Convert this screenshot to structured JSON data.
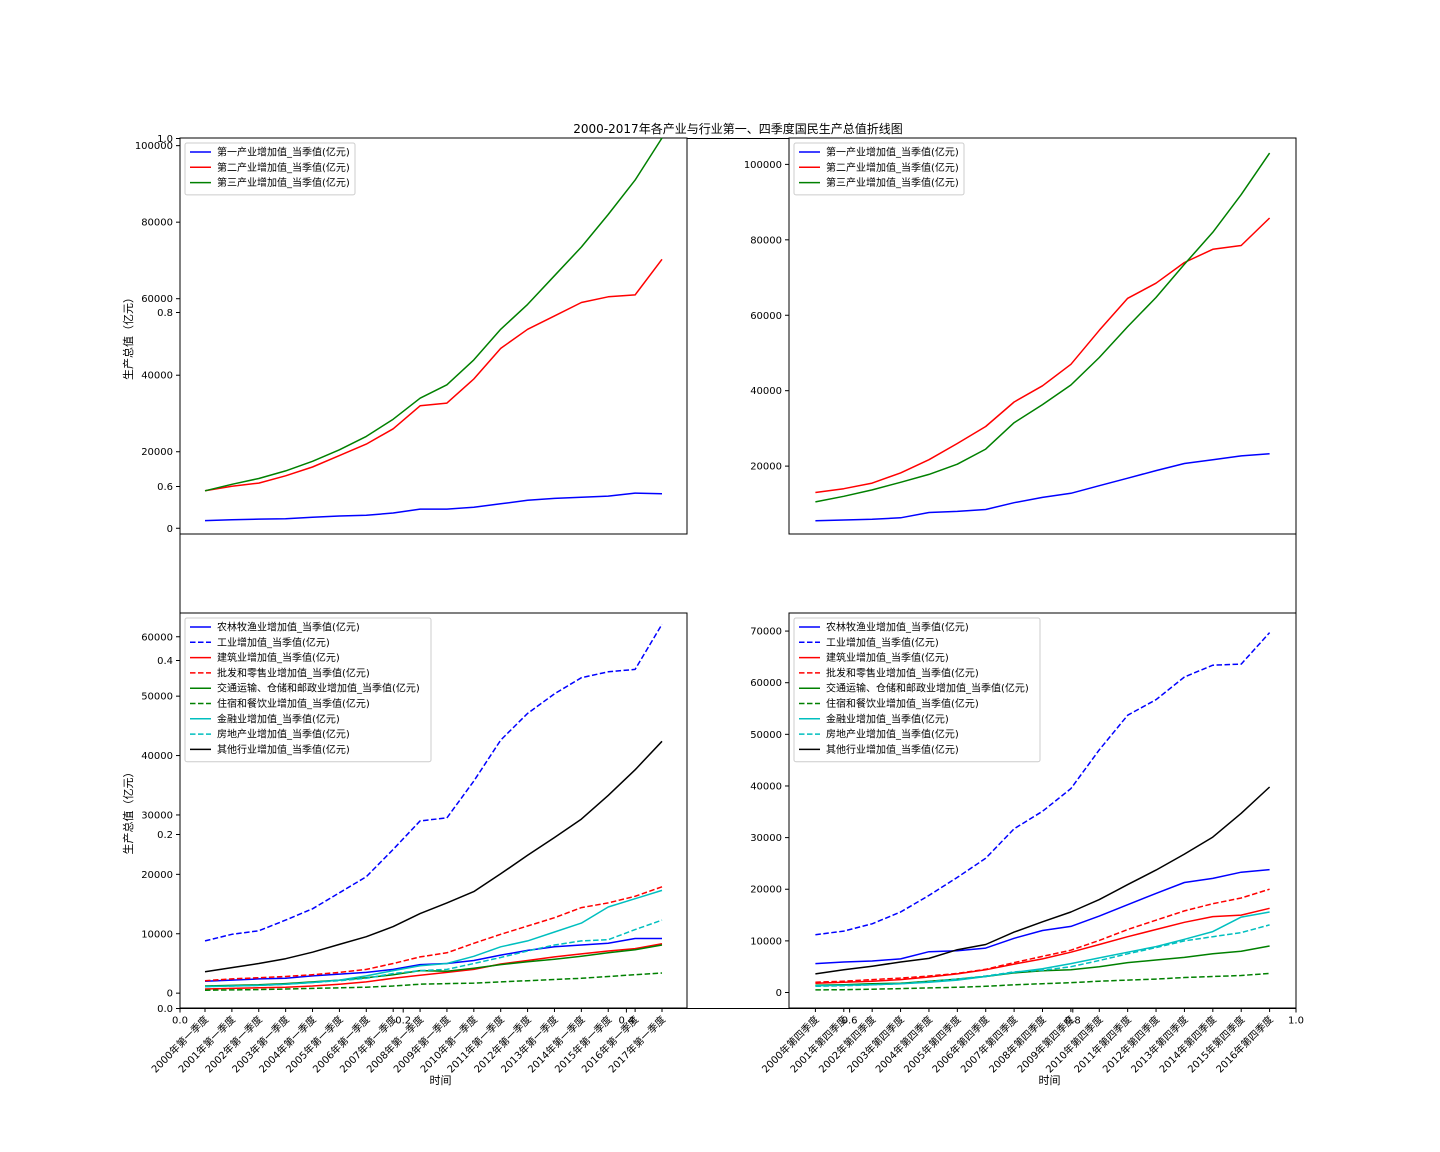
{
  "chart_data": [
    {
      "type": "line",
      "title": "2000-2017年各产业与行业第一、四季度国民生产总值折线图",
      "xlabel": "",
      "ylabel": "生产总值（亿元）",
      "categories": [
        "2000年第一季度",
        "2001年第一季度",
        "2002年第一季度",
        "2003年第一季度",
        "2004年第一季度",
        "2005年第一季度",
        "2006年第一季度",
        "2007年第一季度",
        "2008年第一季度",
        "2009年第一季度",
        "2010年第一季度",
        "2011年第一季度",
        "2012年第一季度",
        "2013年第一季度",
        "2014年第一季度",
        "2015年第一季度",
        "2016年第一季度",
        "2017年第一季度"
      ],
      "show_x_ticks": false,
      "ylim": [
        -1500,
        102000
      ],
      "yticks": [
        0,
        20000,
        40000,
        60000,
        80000,
        100000
      ],
      "legend": "upper-left",
      "series": [
        {
          "name": "第一产业增加值_当季值(亿元)",
          "color": "#0000ff",
          "dash": "solid",
          "values": [
            2000,
            2200,
            2400,
            2500,
            2900,
            3200,
            3400,
            4000,
            5000,
            5000,
            5500,
            6400,
            7300,
            7800,
            8100,
            8400,
            9200,
            9000
          ]
        },
        {
          "name": "第二产业增加值_当季值(亿元)",
          "color": "#ff0000",
          "dash": "solid",
          "values": [
            9800,
            11000,
            11800,
            13700,
            16000,
            19000,
            22000,
            26000,
            32000,
            32700,
            39000,
            47000,
            52000,
            55500,
            59000,
            60500,
            61000,
            70300
          ]
        },
        {
          "name": "第三产业增加值_当季值(亿元)",
          "color": "#008000",
          "dash": "solid",
          "values": [
            9800,
            11500,
            13000,
            15000,
            17500,
            20500,
            24000,
            28500,
            34000,
            37500,
            44000,
            52000,
            58500,
            66000,
            73500,
            82000,
            91000,
            102000
          ]
        }
      ]
    },
    {
      "type": "line",
      "title": "",
      "xlabel": "",
      "ylabel": "",
      "categories": [
        "2000年第四季度",
        "2001年第四季度",
        "2002年第四季度",
        "2003年第四季度",
        "2004年第四季度",
        "2005年第四季度",
        "2006年第四季度",
        "2007年第四季度",
        "2008年第四季度",
        "2009年第四季度",
        "2010年第四季度",
        "2011年第四季度",
        "2012年第四季度",
        "2013年第四季度",
        "2014年第四季度",
        "2015年第四季度",
        "2016年第四季度"
      ],
      "show_x_ticks": false,
      "ylim": [
        2000,
        107000
      ],
      "yticks": [
        20000,
        40000,
        60000,
        80000,
        100000
      ],
      "legend": "upper-left",
      "series": [
        {
          "name": "第一产业增加值_当季值(亿元)",
          "color": "#0000ff",
          "dash": "solid",
          "values": [
            5500,
            5700,
            5900,
            6300,
            7700,
            8000,
            8500,
            10300,
            11700,
            12800,
            14800,
            16800,
            18800,
            20700,
            21700,
            22700,
            23300
          ]
        },
        {
          "name": "第二产业增加值_当季值(亿元)",
          "color": "#ff0000",
          "dash": "solid",
          "values": [
            13000,
            14000,
            15500,
            18200,
            21700,
            26000,
            30500,
            37000,
            41300,
            47000,
            56000,
            64500,
            68500,
            74000,
            77500,
            78500,
            85800
          ]
        },
        {
          "name": "第三产业增加值_当季值(亿元)",
          "color": "#008000",
          "dash": "solid",
          "values": [
            10500,
            12000,
            13700,
            15700,
            17800,
            20500,
            24500,
            31500,
            36300,
            41500,
            48800,
            57000,
            64700,
            73500,
            82000,
            92000,
            103000
          ]
        }
      ]
    },
    {
      "type": "line",
      "title": "",
      "xlabel": "时间",
      "ylabel": "生产总值（亿元）",
      "categories": [
        "2000年第一季度",
        "2001年第一季度",
        "2002年第一季度",
        "2003年第一季度",
        "2004年第一季度",
        "2005年第一季度",
        "2006年第一季度",
        "2007年第一季度",
        "2008年第一季度",
        "2009年第一季度",
        "2010年第一季度",
        "2011年第一季度",
        "2012年第一季度",
        "2013年第一季度",
        "2014年第一季度",
        "2015年第一季度",
        "2016年第一季度",
        "2017年第一季度"
      ],
      "show_x_ticks": true,
      "ylim": [
        -2500,
        64000
      ],
      "yticks": [
        0,
        10000,
        20000,
        30000,
        40000,
        50000,
        60000
      ],
      "legend": "upper-left",
      "series": [
        {
          "name": "农林牧渔业增加值_当季值(亿元)",
          "color": "#0000ff",
          "dash": "solid",
          "values": [
            2000,
            2200,
            2400,
            2500,
            2900,
            3200,
            3500,
            4000,
            4800,
            5000,
            5500,
            6400,
            7200,
            7800,
            8100,
            8400,
            9200,
            9200
          ]
        },
        {
          "name": "工业增加值_当季值(亿元)",
          "color": "#0000ff",
          "dash": "dashed",
          "values": [
            8800,
            9900,
            10500,
            12300,
            14200,
            16900,
            19600,
            24200,
            29000,
            29500,
            35700,
            42600,
            47100,
            50400,
            53100,
            54100,
            54500,
            62100
          ]
        },
        {
          "name": "建筑业增加值_当季值(亿元)",
          "color": "#ff0000",
          "dash": "solid",
          "values": [
            700,
            800,
            900,
            1000,
            1200,
            1500,
            1900,
            2500,
            3000,
            3500,
            4000,
            4900,
            5500,
            6100,
            6600,
            7100,
            7500,
            8300
          ]
        },
        {
          "name": "批发和零售业增加值_当季值(亿元)",
          "color": "#ff0000",
          "dash": "dashed",
          "values": [
            2100,
            2400,
            2600,
            2800,
            3100,
            3500,
            4000,
            5000,
            6100,
            6800,
            8400,
            9900,
            11300,
            12700,
            14400,
            15200,
            16300,
            17900
          ]
        },
        {
          "name": "交通运输、仓储和邮政业增加值_当季值(亿元)",
          "color": "#008000",
          "dash": "solid",
          "values": [
            1200,
            1300,
            1400,
            1600,
            1900,
            2200,
            2600,
            3100,
            3800,
            3700,
            4200,
            4800,
            5300,
            5700,
            6200,
            6800,
            7300,
            8100
          ]
        },
        {
          "name": "住宿和餐饮业增加值_当季值(亿元)",
          "color": "#008000",
          "dash": "dashed",
          "values": [
            500,
            550,
            600,
            700,
            800,
            900,
            1000,
            1200,
            1500,
            1600,
            1700,
            1900,
            2100,
            2300,
            2500,
            2800,
            3100,
            3400
          ]
        },
        {
          "name": "金融业增加值_当季值(亿元)",
          "color": "#00bfbf",
          "dash": "solid",
          "values": [
            1100,
            1200,
            1300,
            1500,
            1800,
            2200,
            2900,
            3800,
            4600,
            5000,
            6200,
            7800,
            8800,
            10300,
            11800,
            14500,
            15900,
            17300
          ]
        },
        {
          "name": "房地产业增加值_当季值(亿元)",
          "color": "#00bfbf",
          "dash": "dashed",
          "values": [
            1100,
            1200,
            1300,
            1500,
            1800,
            2100,
            2500,
            3300,
            3800,
            4000,
            5000,
            6000,
            7100,
            8100,
            8800,
            9000,
            10700,
            12300
          ]
        },
        {
          "name": "其他行业增加值_当季值(亿元)",
          "color": "#000000",
          "dash": "solid",
          "values": [
            3600,
            4300,
            5000,
            5800,
            6900,
            8200,
            9500,
            11200,
            13400,
            15200,
            17100,
            20100,
            23200,
            26200,
            29300,
            33300,
            37600,
            42400
          ]
        }
      ]
    },
    {
      "type": "line",
      "title": "",
      "xlabel": "时间",
      "ylabel": "",
      "categories": [
        "2000年第四季度",
        "2001年第四季度",
        "2002年第四季度",
        "2003年第四季度",
        "2004年第四季度",
        "2005年第四季度",
        "2006年第四季度",
        "2007年第四季度",
        "2008年第四季度",
        "2009年第四季度",
        "2010年第四季度",
        "2011年第四季度",
        "2012年第四季度",
        "2013年第四季度",
        "2014年第四季度",
        "2015年第四季度",
        "2016年第四季度"
      ],
      "show_x_ticks": true,
      "ylim": [
        -3000,
        73500
      ],
      "yticks": [
        0,
        10000,
        20000,
        30000,
        40000,
        50000,
        60000,
        70000
      ],
      "legend": "upper-left",
      "series": [
        {
          "name": "农林牧渔业增加值_当季值(亿元)",
          "color": "#0000ff",
          "dash": "solid",
          "values": [
            5600,
            5900,
            6100,
            6500,
            7900,
            8100,
            8600,
            10500,
            12000,
            12800,
            14800,
            17000,
            19200,
            21300,
            22100,
            23300,
            23800
          ]
        },
        {
          "name": "工业增加值_当季值(亿元)",
          "color": "#0000ff",
          "dash": "dashed",
          "values": [
            11200,
            11900,
            13300,
            15600,
            18800,
            22300,
            26000,
            31700,
            35100,
            39500,
            47000,
            53700,
            56700,
            61100,
            63400,
            63600,
            69700
          ]
        },
        {
          "name": "建筑业增加值_当季值(亿元)",
          "color": "#ff0000",
          "dash": "solid",
          "values": [
            1800,
            2000,
            2200,
            2500,
            3000,
            3600,
            4400,
            5500,
            6500,
            7800,
            9300,
            10800,
            12200,
            13600,
            14700,
            15000,
            16300
          ]
        },
        {
          "name": "批发和零售业增加值_当季值(亿元)",
          "color": "#ff0000",
          "dash": "dashed",
          "values": [
            2000,
            2200,
            2500,
            2800,
            3200,
            3700,
            4500,
            5800,
            7000,
            8200,
            10100,
            12200,
            14000,
            15800,
            17200,
            18300,
            20000
          ]
        },
        {
          "name": "交通运输、仓储和邮政业增加值_当季值(亿元)",
          "color": "#008000",
          "dash": "solid",
          "values": [
            1400,
            1500,
            1700,
            1800,
            2200,
            2600,
            3100,
            3800,
            4200,
            4400,
            5000,
            5800,
            6300,
            6800,
            7500,
            8000,
            9000
          ]
        },
        {
          "name": "住宿和餐饮业增加值_当季值(亿元)",
          "color": "#008000",
          "dash": "dashed",
          "values": [
            500,
            550,
            650,
            750,
            900,
            1000,
            1200,
            1500,
            1700,
            1900,
            2200,
            2400,
            2600,
            2900,
            3100,
            3300,
            3700
          ]
        },
        {
          "name": "金融业增加值_当季值(亿元)",
          "color": "#00bfbf",
          "dash": "solid",
          "values": [
            1300,
            1400,
            1500,
            1700,
            2000,
            2400,
            3100,
            3900,
            4600,
            5600,
            6700,
            7800,
            8900,
            10300,
            11800,
            14600,
            15600
          ]
        },
        {
          "name": "房地产业增加值_当季值(亿元)",
          "color": "#00bfbf",
          "dash": "dashed",
          "values": [
            1200,
            1300,
            1500,
            1700,
            2100,
            2600,
            3200,
            4000,
            4300,
            5000,
            6200,
            7500,
            8700,
            10000,
            10800,
            11600,
            13100
          ]
        },
        {
          "name": "其他行业增加值_当季值(亿元)",
          "color": "#000000",
          "dash": "solid",
          "values": [
            3600,
            4400,
            5100,
            5900,
            6600,
            8300,
            9300,
            11700,
            13700,
            15600,
            18000,
            20900,
            23700,
            26800,
            30100,
            34700,
            39800
          ]
        }
      ]
    }
  ],
  "overlay_axis": {
    "y_ticks": [
      "0.0",
      "0.2",
      "0.4",
      "0.6",
      "0.8",
      "1.0"
    ],
    "x_ticks": [
      "0.0",
      "0.2",
      "0.4",
      "0.6",
      "0.8",
      "1.0"
    ]
  }
}
